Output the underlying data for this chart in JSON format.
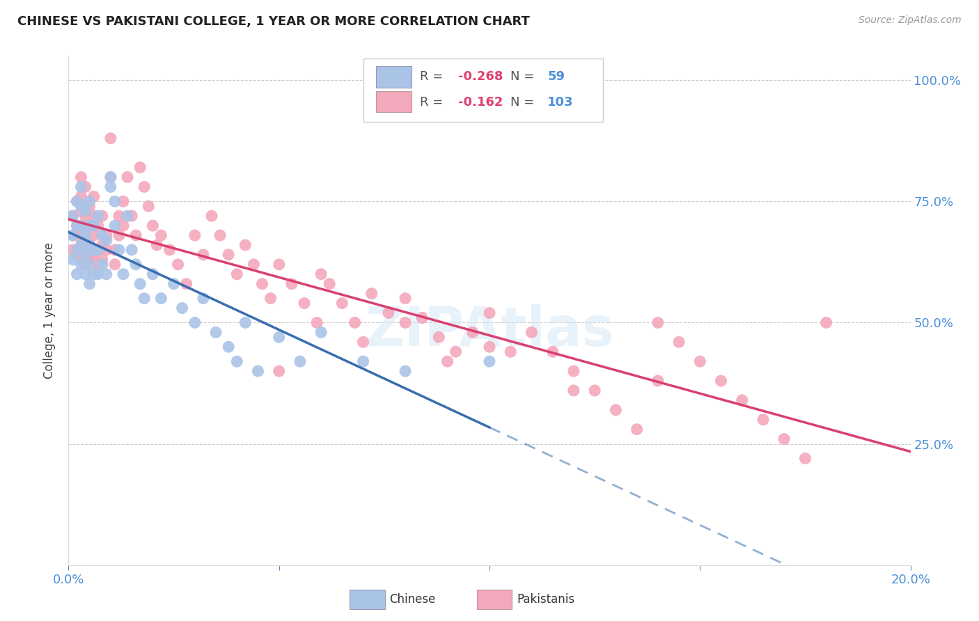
{
  "title": "CHINESE VS PAKISTANI COLLEGE, 1 YEAR OR MORE CORRELATION CHART",
  "source": "Source: ZipAtlas.com",
  "ylabel": "College, 1 year or more",
  "xlim": [
    0.0,
    0.2
  ],
  "ylim": [
    0.0,
    1.05
  ],
  "yticks": [
    0.25,
    0.5,
    0.75,
    1.0
  ],
  "ytick_labels": [
    "25.0%",
    "50.0%",
    "75.0%",
    "100.0%"
  ],
  "xticks": [
    0.0,
    0.05,
    0.1,
    0.15,
    0.2
  ],
  "background_color": "#ffffff",
  "chinese": {
    "R": -0.268,
    "N": 59,
    "color": "#aac4e8",
    "line_color": "#3a6db0",
    "label": "Chinese",
    "x": [
      0.001,
      0.001,
      0.001,
      0.002,
      0.002,
      0.002,
      0.002,
      0.003,
      0.003,
      0.003,
      0.003,
      0.003,
      0.004,
      0.004,
      0.004,
      0.004,
      0.005,
      0.005,
      0.005,
      0.005,
      0.005,
      0.006,
      0.006,
      0.006,
      0.007,
      0.007,
      0.007,
      0.008,
      0.008,
      0.009,
      0.009,
      0.01,
      0.01,
      0.011,
      0.011,
      0.012,
      0.013,
      0.014,
      0.015,
      0.016,
      0.017,
      0.018,
      0.02,
      0.022,
      0.025,
      0.027,
      0.03,
      0.032,
      0.035,
      0.038,
      0.04,
      0.042,
      0.045,
      0.05,
      0.055,
      0.06,
      0.07,
      0.08,
      0.1
    ],
    "y": [
      0.63,
      0.68,
      0.72,
      0.6,
      0.65,
      0.7,
      0.75,
      0.62,
      0.66,
      0.7,
      0.74,
      0.78,
      0.6,
      0.64,
      0.68,
      0.73,
      0.58,
      0.62,
      0.66,
      0.7,
      0.75,
      0.6,
      0.65,
      0.7,
      0.6,
      0.65,
      0.72,
      0.62,
      0.68,
      0.6,
      0.67,
      0.8,
      0.78,
      0.75,
      0.7,
      0.65,
      0.6,
      0.72,
      0.65,
      0.62,
      0.58,
      0.55,
      0.6,
      0.55,
      0.58,
      0.53,
      0.5,
      0.55,
      0.48,
      0.45,
      0.42,
      0.5,
      0.4,
      0.47,
      0.42,
      0.48,
      0.42,
      0.4,
      0.42
    ]
  },
  "pakistani": {
    "R": -0.162,
    "N": 103,
    "color": "#f4a8bc",
    "line_color": "#d94070",
    "label": "Pakistanis",
    "x": [
      0.001,
      0.001,
      0.001,
      0.002,
      0.002,
      0.002,
      0.002,
      0.003,
      0.003,
      0.003,
      0.003,
      0.003,
      0.003,
      0.004,
      0.004,
      0.004,
      0.004,
      0.004,
      0.005,
      0.005,
      0.005,
      0.005,
      0.006,
      0.006,
      0.006,
      0.006,
      0.007,
      0.007,
      0.007,
      0.008,
      0.008,
      0.008,
      0.009,
      0.009,
      0.01,
      0.01,
      0.011,
      0.011,
      0.012,
      0.012,
      0.013,
      0.013,
      0.014,
      0.015,
      0.016,
      0.017,
      0.018,
      0.019,
      0.02,
      0.021,
      0.022,
      0.024,
      0.026,
      0.028,
      0.03,
      0.032,
      0.034,
      0.036,
      0.038,
      0.04,
      0.042,
      0.044,
      0.046,
      0.048,
      0.05,
      0.053,
      0.056,
      0.059,
      0.062,
      0.065,
      0.068,
      0.072,
      0.076,
      0.08,
      0.084,
      0.088,
      0.092,
      0.096,
      0.1,
      0.105,
      0.11,
      0.115,
      0.12,
      0.125,
      0.13,
      0.135,
      0.14,
      0.145,
      0.15,
      0.155,
      0.16,
      0.165,
      0.17,
      0.175,
      0.18,
      0.14,
      0.06,
      0.08,
      0.1,
      0.12,
      0.05,
      0.07,
      0.09
    ],
    "y": [
      0.72,
      0.68,
      0.65,
      0.75,
      0.7,
      0.68,
      0.64,
      0.73,
      0.69,
      0.66,
      0.63,
      0.76,
      0.8,
      0.72,
      0.68,
      0.65,
      0.62,
      0.78,
      0.7,
      0.66,
      0.63,
      0.74,
      0.68,
      0.64,
      0.72,
      0.76,
      0.65,
      0.62,
      0.7,
      0.66,
      0.63,
      0.72,
      0.65,
      0.68,
      0.88,
      0.8,
      0.65,
      0.62,
      0.72,
      0.68,
      0.75,
      0.7,
      0.8,
      0.72,
      0.68,
      0.82,
      0.78,
      0.74,
      0.7,
      0.66,
      0.68,
      0.65,
      0.62,
      0.58,
      0.68,
      0.64,
      0.72,
      0.68,
      0.64,
      0.6,
      0.66,
      0.62,
      0.58,
      0.55,
      0.62,
      0.58,
      0.54,
      0.5,
      0.58,
      0.54,
      0.5,
      0.56,
      0.52,
      0.55,
      0.51,
      0.47,
      0.44,
      0.48,
      0.52,
      0.44,
      0.48,
      0.44,
      0.4,
      0.36,
      0.32,
      0.28,
      0.5,
      0.46,
      0.42,
      0.38,
      0.34,
      0.3,
      0.26,
      0.22,
      0.5,
      0.38,
      0.6,
      0.5,
      0.45,
      0.36,
      0.4,
      0.46,
      0.42
    ]
  },
  "axis_color": "#4a90d9",
  "grid_color": "#cccccc"
}
